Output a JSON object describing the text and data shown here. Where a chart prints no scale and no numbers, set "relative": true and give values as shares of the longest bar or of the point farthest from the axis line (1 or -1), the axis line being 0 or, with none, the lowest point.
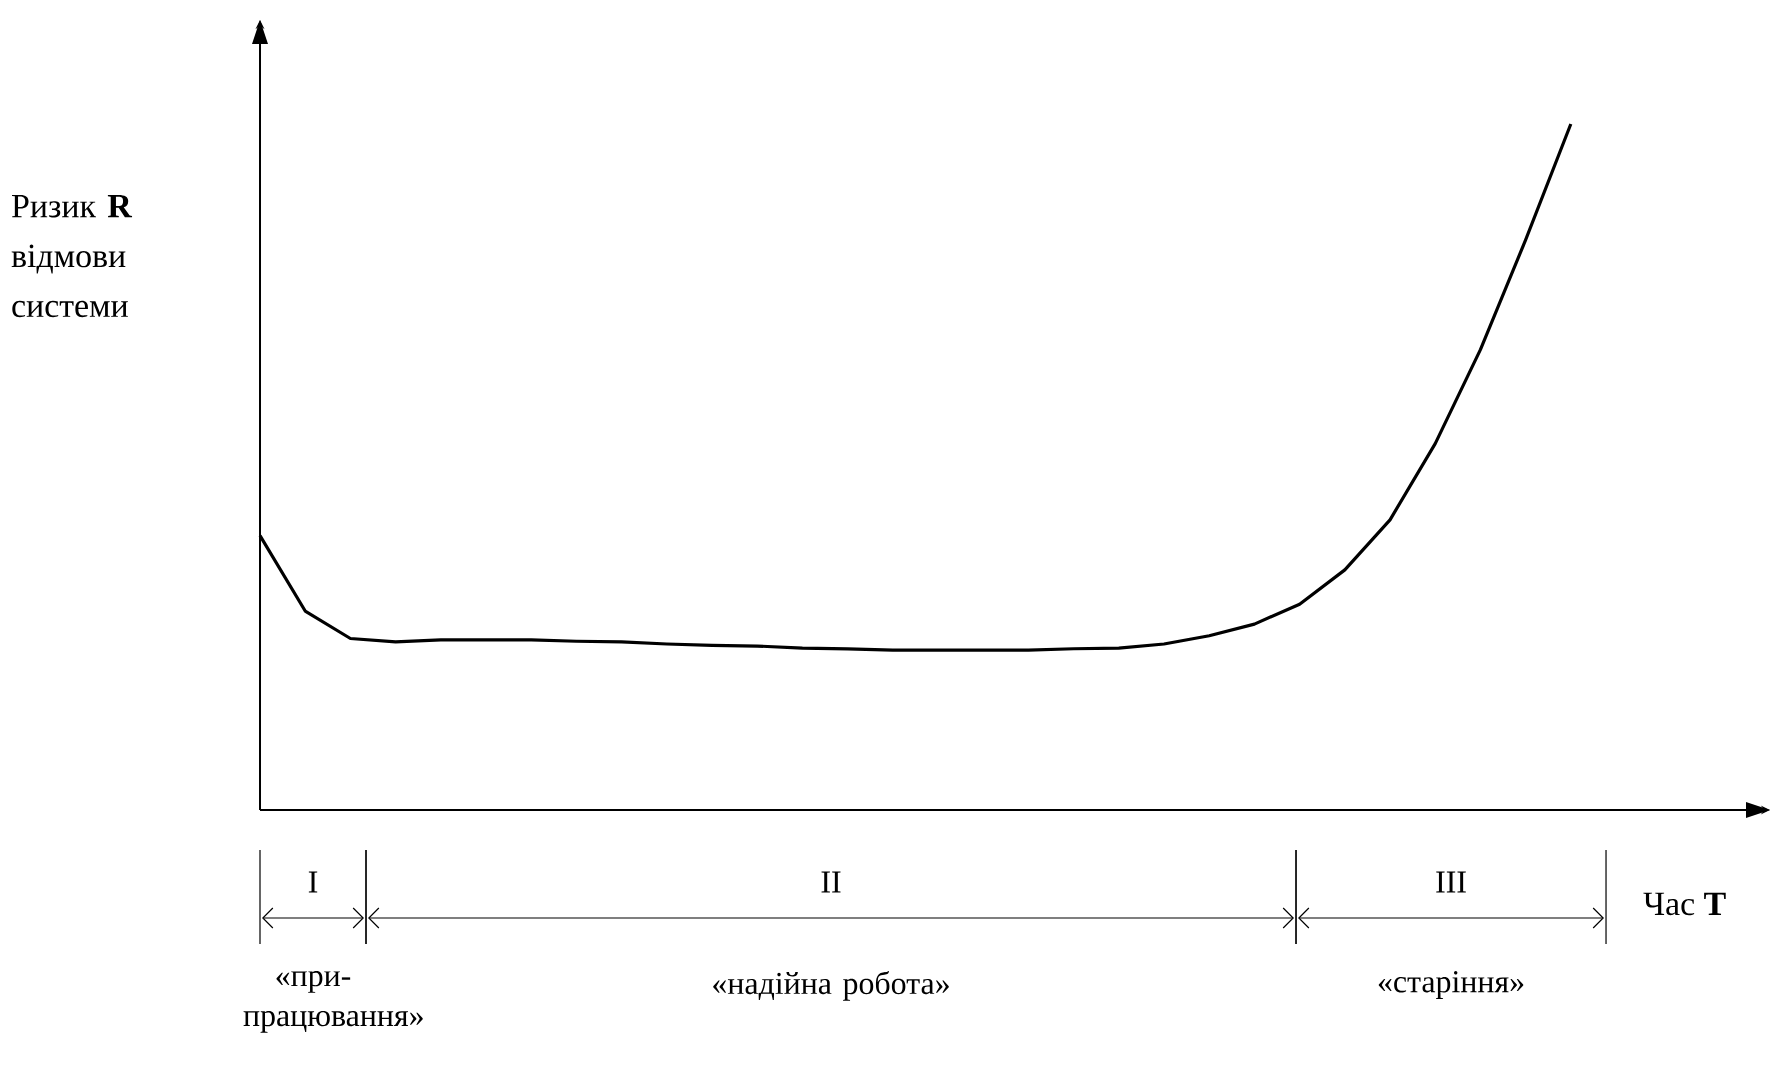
{
  "chart_data": {
    "type": "line",
    "relative": true,
    "xlabel": "Час **T**",
    "ylabel": "Ризик **R** відмови системи",
    "color": "#000000",
    "categories": [
      null,
      null,
      null,
      null,
      null,
      null,
      null,
      null,
      null,
      null,
      null,
      null,
      null,
      null,
      null,
      null,
      null,
      null,
      null,
      null,
      null,
      null,
      null,
      null,
      null,
      null,
      null,
      null,
      null,
      null
    ],
    "values": [
      0.4,
      0.29,
      0.25,
      0.245,
      0.248,
      0.248,
      0.248,
      0.246,
      0.245,
      0.242,
      0.24,
      0.239,
      0.236,
      0.235,
      0.233,
      0.233,
      0.233,
      0.233,
      0.235,
      0.236,
      0.242,
      0.254,
      0.271,
      0.3,
      0.35,
      0.423,
      0.534,
      0.671,
      0.831,
      1
    ],
    "annotations": [
      "I",
      "II",
      "III",
      "«при-працювання»",
      "«надійна робота»",
      "«старіння»"
    ]
  }
}
